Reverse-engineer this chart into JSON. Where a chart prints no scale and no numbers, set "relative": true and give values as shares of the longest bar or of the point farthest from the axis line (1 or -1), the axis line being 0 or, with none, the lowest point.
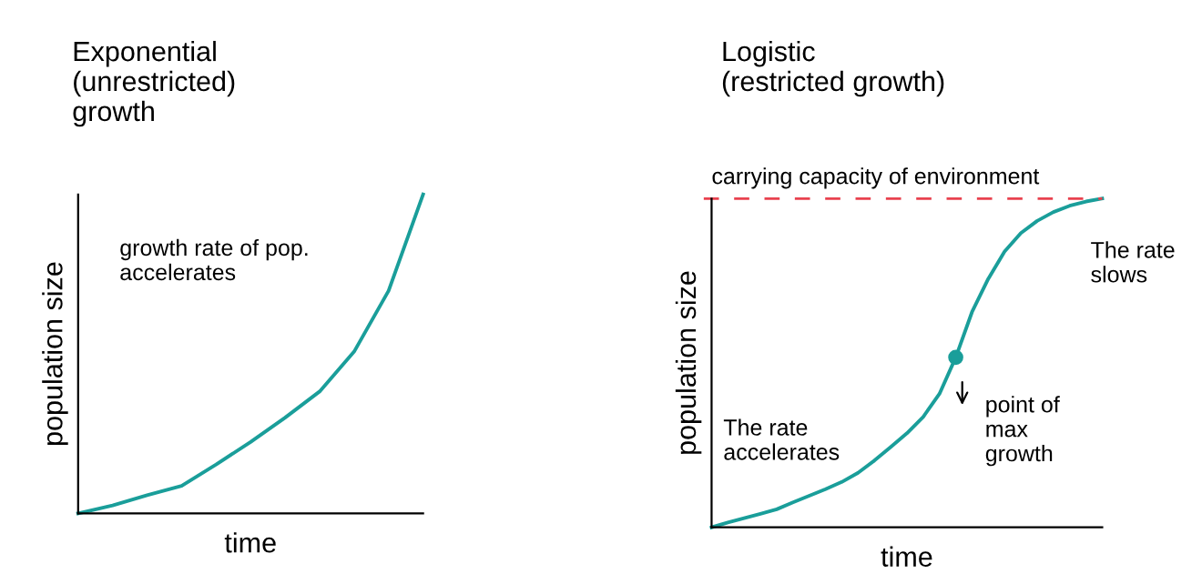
{
  "chart_data": [
    {
      "type": "line",
      "title": "Exponential\n(unrestricted)\ngrowth",
      "xlabel": "time",
      "ylabel": "population size",
      "relative": true,
      "annotations": [
        "growth rate of pop.\naccelerates"
      ],
      "categories": [
        null,
        null,
        null,
        null,
        null,
        null,
        null,
        null,
        null,
        null,
        null
      ],
      "series": [
        {
          "color": "#1a9e9a",
          "values": [
            0,
            0.025,
            0.057,
            0.086,
            0.153,
            0.224,
            0.3,
            0.382,
            0.507,
            0.698,
            1
          ]
        }
      ]
    },
    {
      "type": "line",
      "title": "Logistic\n(restricted growth)",
      "xlabel": "time",
      "ylabel": "population size",
      "relative": true,
      "annotations": [
        "The rate\nslows",
        "point of\nmax\ngrowth",
        "The rate\naccelerates"
      ],
      "ref_lines": [
        {
          "axis": "y",
          "value": 1,
          "label": "carrying capacity of environment",
          "color": "#e8424f",
          "line_style": "dashed"
        }
      ],
      "categories": [
        null,
        null,
        null,
        null,
        null,
        null,
        null,
        null,
        null,
        null,
        null,
        null,
        null,
        null,
        null,
        null,
        null,
        null,
        null,
        null,
        null,
        null,
        null,
        null,
        null
      ],
      "series": [
        {
          "color": "#1a9e9a",
          "values": [
            0,
            0.015,
            0.028,
            0.041,
            0.055,
            0.076,
            0.096,
            0.116,
            0.138,
            0.166,
            0.203,
            0.244,
            0.286,
            0.336,
            0.406,
            0.517,
            0.655,
            0.756,
            0.839,
            0.895,
            0.932,
            0.959,
            0.978,
            0.991,
            1
          ]
        }
      ]
    }
  ]
}
